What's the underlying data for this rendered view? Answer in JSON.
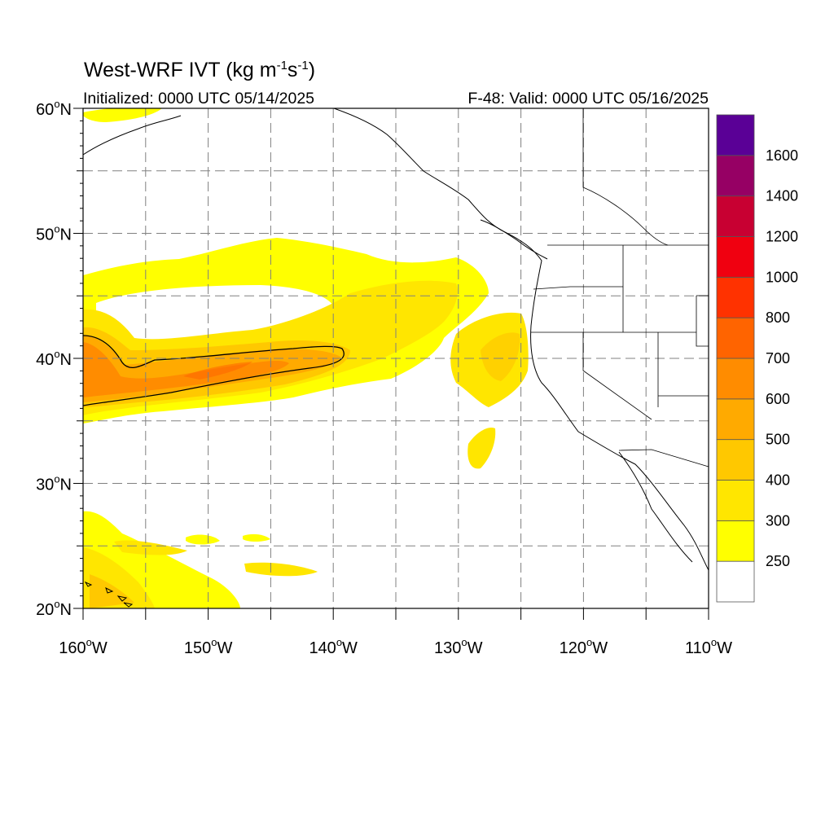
{
  "title": {
    "main": "West-WRF IVT (kg m",
    "exp1": "-1",
    "mid": "s",
    "exp2": "-1",
    "end": ")"
  },
  "initialized": "Initialized: 0000 UTC 05/14/2025",
  "valid": "F-48: Valid: 0000 UTC 05/16/2025",
  "map": {
    "lon_range": [
      -160,
      -110
    ],
    "lat_range": [
      20,
      60
    ],
    "lat_labels": [
      {
        "lat": 60,
        "text": "60"
      },
      {
        "lat": 50,
        "text": "50"
      },
      {
        "lat": 40,
        "text": "40"
      },
      {
        "lat": 30,
        "text": "30"
      },
      {
        "lat": 20,
        "text": "20"
      }
    ],
    "lat_suffix": "N",
    "lon_labels": [
      {
        "lon": -160,
        "text": "160"
      },
      {
        "lon": -150,
        "text": "150"
      },
      {
        "lon": -140,
        "text": "140"
      },
      {
        "lon": -130,
        "text": "130"
      },
      {
        "lon": -120,
        "text": "120"
      },
      {
        "lon": -110,
        "text": "110"
      }
    ],
    "lon_suffix": "W",
    "gridline_spacing_deg": 5,
    "gridline_style": "dashed gray"
  },
  "colorbar": {
    "colors": [
      "#ffffff",
      "#ffff00",
      "#ffe600",
      "#ffc800",
      "#ffaa00",
      "#ff8c00",
      "#ff6400",
      "#ff3200",
      "#f00010",
      "#c80032",
      "#960064",
      "#5a0096"
    ],
    "labels": [
      "250",
      "300",
      "400",
      "500",
      "600",
      "700",
      "800",
      "1000",
      "1200",
      "1400",
      "1600"
    ]
  }
}
